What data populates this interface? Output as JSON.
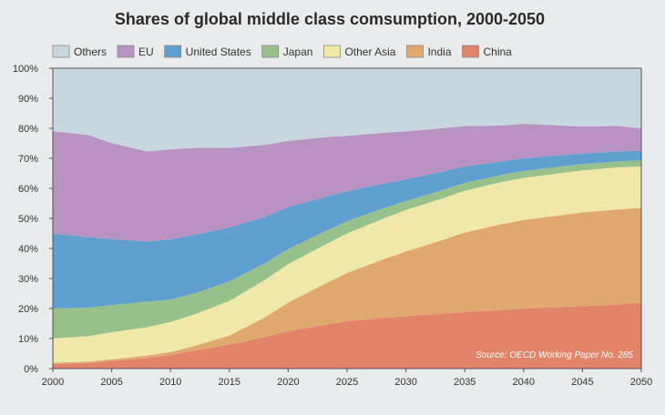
{
  "chart_data": {
    "type": "area",
    "stacked": true,
    "title": "Shares of global middle class comsumption, 2000-2050",
    "source": "Source: OECD Working Paper No. 285",
    "xlabel": "",
    "ylabel": "",
    "x": [
      2000,
      2003,
      2005,
      2008,
      2010,
      2012,
      2015,
      2018,
      2020,
      2023,
      2025,
      2028,
      2030,
      2033,
      2035,
      2038,
      2040,
      2043,
      2045,
      2048,
      2050
    ],
    "xticks": [
      2000,
      2005,
      2010,
      2015,
      2020,
      2025,
      2030,
      2035,
      2040,
      2045,
      2050
    ],
    "xlim": [
      2000,
      2050
    ],
    "ylim": [
      0,
      100
    ],
    "yticks": [
      "0%",
      "10%",
      "20%",
      "30%",
      "40%",
      "50%",
      "60%",
      "70%",
      "80%",
      "90%",
      "100%"
    ],
    "legend_position": "top",
    "series": [
      {
        "name": "China",
        "color": "#e2846a",
        "values": [
          1.5,
          1.8,
          2.5,
          3.5,
          4.5,
          6.0,
          8.0,
          10.5,
          12.5,
          14.5,
          15.8,
          16.8,
          17.5,
          18.2,
          18.8,
          19.5,
          20.0,
          20.5,
          20.8,
          21.3,
          22.0
        ]
      },
      {
        "name": "India",
        "color": "#e1a86e",
        "values": [
          0.5,
          0.5,
          0.6,
          0.8,
          1.0,
          1.5,
          3.0,
          6.5,
          9.5,
          13.5,
          16.0,
          19.5,
          21.5,
          24.5,
          26.5,
          28.5,
          29.5,
          30.5,
          31.2,
          31.7,
          31.5
        ]
      },
      {
        "name": "Other Asia",
        "color": "#efe8a8",
        "values": [
          8.0,
          8.5,
          9.0,
          9.5,
          10.0,
          10.5,
          11.5,
          12.5,
          12.8,
          13.0,
          13.2,
          13.5,
          13.8,
          13.8,
          13.9,
          14.0,
          14.0,
          14.0,
          14.0,
          14.0,
          13.8
        ]
      },
      {
        "name": "Japan",
        "color": "#98c08a",
        "values": [
          10.0,
          9.5,
          9.0,
          8.5,
          7.5,
          7.0,
          6.5,
          5.5,
          5.0,
          4.5,
          4.0,
          3.5,
          3.0,
          2.8,
          2.6,
          2.4,
          2.3,
          2.2,
          2.1,
          2.0,
          2.0
        ]
      },
      {
        "name": "United States",
        "color": "#5f9fd0",
        "values": [
          25.0,
          23.5,
          22.0,
          20.0,
          20.0,
          19.5,
          18.0,
          15.5,
          14.0,
          11.5,
          10.0,
          8.2,
          7.2,
          6.2,
          5.5,
          4.5,
          4.2,
          3.8,
          3.5,
          3.3,
          3.2
        ]
      },
      {
        "name": "EU",
        "color": "#b892c0",
        "values": [
          34.0,
          34.0,
          32.0,
          30.0,
          30.0,
          29.0,
          26.5,
          24.0,
          22.0,
          20.0,
          18.5,
          17.0,
          16.0,
          14.5,
          13.5,
          12.0,
          11.5,
          10.0,
          9.0,
          8.5,
          7.5
        ]
      },
      {
        "name": "Others",
        "color": "#c8d7df",
        "values": [
          21.0,
          22.2,
          24.9,
          27.7,
          27.0,
          26.5,
          26.5,
          25.5,
          24.7,
          23.0,
          22.5,
          21.5,
          21.0,
          20.0,
          19.2,
          19.1,
          18.5,
          19.0,
          19.4,
          19.2,
          20.0
        ]
      }
    ],
    "legend_order": [
      "Others",
      "EU",
      "United States",
      "Japan",
      "Other Asia",
      "India",
      "China"
    ]
  }
}
